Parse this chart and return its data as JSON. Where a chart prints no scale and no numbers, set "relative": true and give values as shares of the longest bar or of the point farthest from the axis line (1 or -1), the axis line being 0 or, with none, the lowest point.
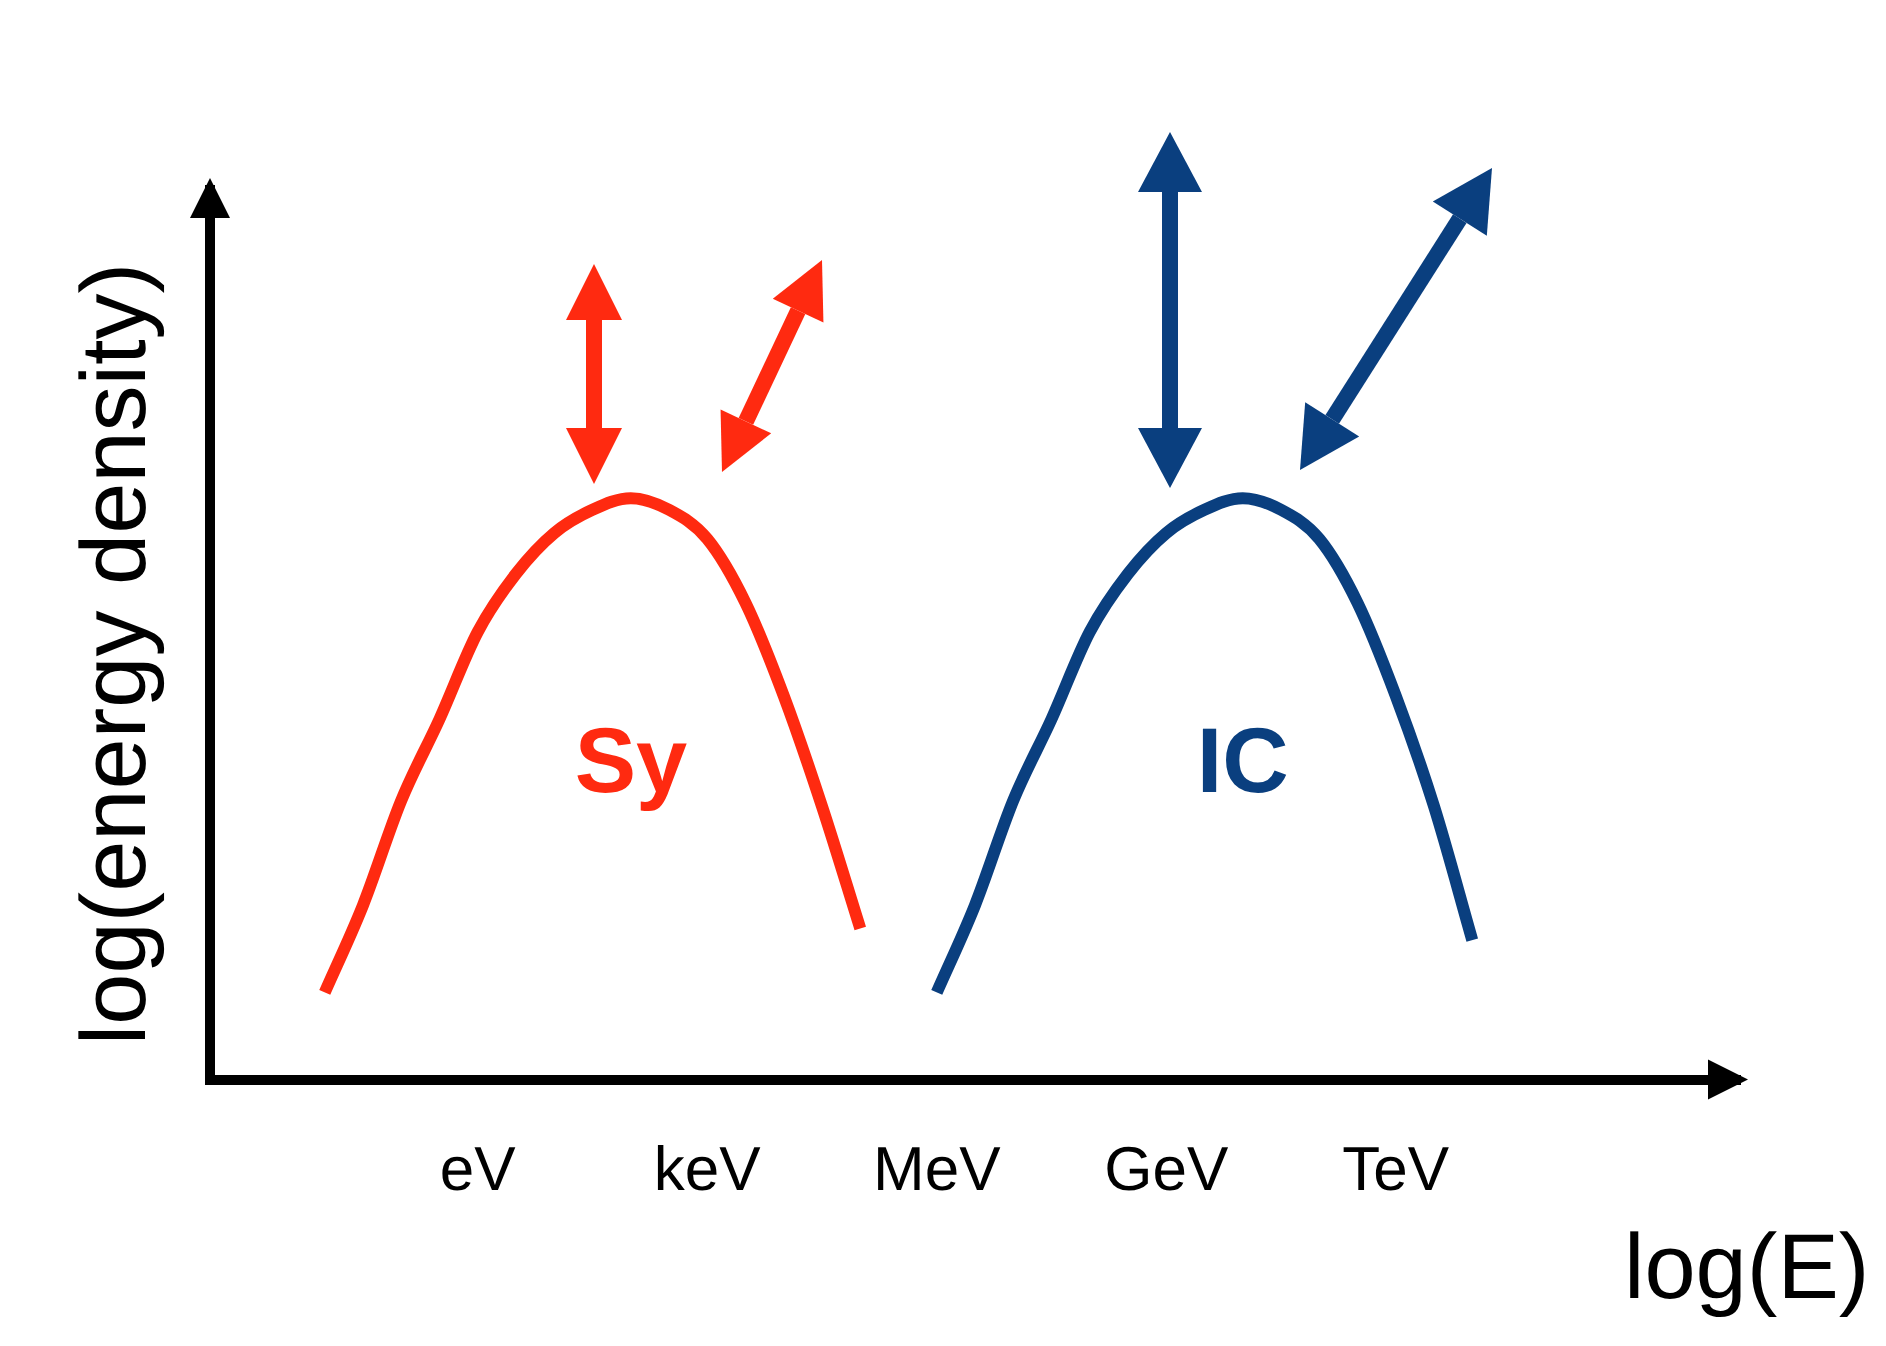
{
  "chart_data": {
    "type": "line",
    "relative": true,
    "ylabel": "log(energy density)",
    "xlabel": "log(E)",
    "categories": [
      null,
      null,
      null,
      null,
      null,
      null,
      null,
      "eV",
      null,
      null,
      null,
      null,
      null,
      "keV",
      null,
      null,
      null,
      null,
      null,
      "MeV",
      null,
      null,
      null,
      null,
      null,
      "GeV",
      null,
      null,
      null,
      null,
      null,
      "TeV",
      null,
      null,
      null,
      null,
      null,
      null,
      null,
      null,
      null
    ],
    "grid": false,
    "legend": false,
    "marker": "none",
    "line_style": "solid",
    "series": [
      {
        "name": "Sy",
        "color": "#ff2a10",
        "values": [
          null,
          null,
          null,
          0.15,
          0.3,
          0.48,
          0.62,
          0.77,
          0.87,
          0.94,
          0.98,
          1,
          0.98,
          0.93,
          0.82,
          0.66,
          0.47,
          0.26,
          null,
          null,
          null,
          null,
          null,
          null,
          null,
          null,
          null,
          null,
          null,
          null,
          null,
          null,
          null,
          null,
          null,
          null,
          null,
          null,
          null,
          null,
          null
        ]
      },
      {
        "name": "IC",
        "color": "#0a3f7f",
        "values": [
          null,
          null,
          null,
          null,
          null,
          null,
          null,
          null,
          null,
          null,
          null,
          null,
          null,
          null,
          null,
          null,
          null,
          null,
          null,
          0.15,
          0.3,
          0.48,
          0.62,
          0.77,
          0.87,
          0.94,
          0.98,
          1,
          0.98,
          0.93,
          0.82,
          0.66,
          0.47,
          0.24,
          null,
          null,
          null,
          null,
          null,
          null,
          null
        ]
      }
    ]
  }
}
